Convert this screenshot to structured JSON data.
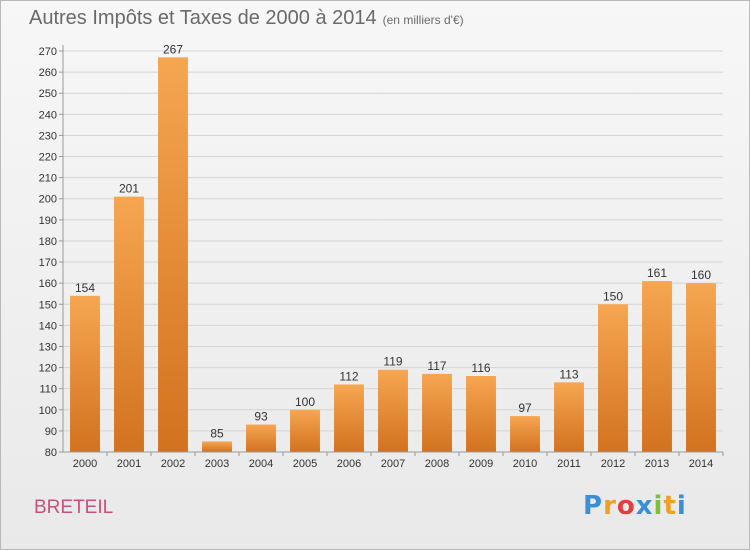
{
  "header": {
    "title": "Autres Impôts et Taxes de 2000 à 2014",
    "unit": "(en milliers d'€)"
  },
  "footer": {
    "commune": "BRETEIL",
    "logo_letters": [
      "P",
      "r",
      "o",
      "x",
      "i",
      "t",
      "i"
    ],
    "logo_colors": [
      "#3b8fd6",
      "#f0a020",
      "#e23e3e",
      "#3b8fd6",
      "#7bbf3a",
      "#f0a020",
      "#3b8fd6"
    ]
  },
  "colors": {
    "bar_light": "#f6a651",
    "bar_dark": "#d2721f",
    "grid": "#d4d4d4",
    "axis": "#9a9a9a",
    "text": "#333333"
  },
  "chart_data": {
    "type": "bar",
    "title": "Autres Impôts et Taxes de 2000 à 2014",
    "categories": [
      "2000",
      "2001",
      "2002",
      "2003",
      "2004",
      "2005",
      "2006",
      "2007",
      "2008",
      "2009",
      "2010",
      "2011",
      "2012",
      "2013",
      "2014"
    ],
    "values": [
      154,
      201,
      267,
      85,
      93,
      100,
      112,
      119,
      117,
      116,
      97,
      113,
      150,
      161,
      160
    ],
    "ylim": [
      80,
      270
    ],
    "yticks": [
      80,
      90,
      100,
      110,
      120,
      130,
      140,
      150,
      160,
      170,
      180,
      190,
      200,
      210,
      220,
      230,
      240,
      250,
      260,
      270
    ],
    "grid": true,
    "legend": "none"
  }
}
